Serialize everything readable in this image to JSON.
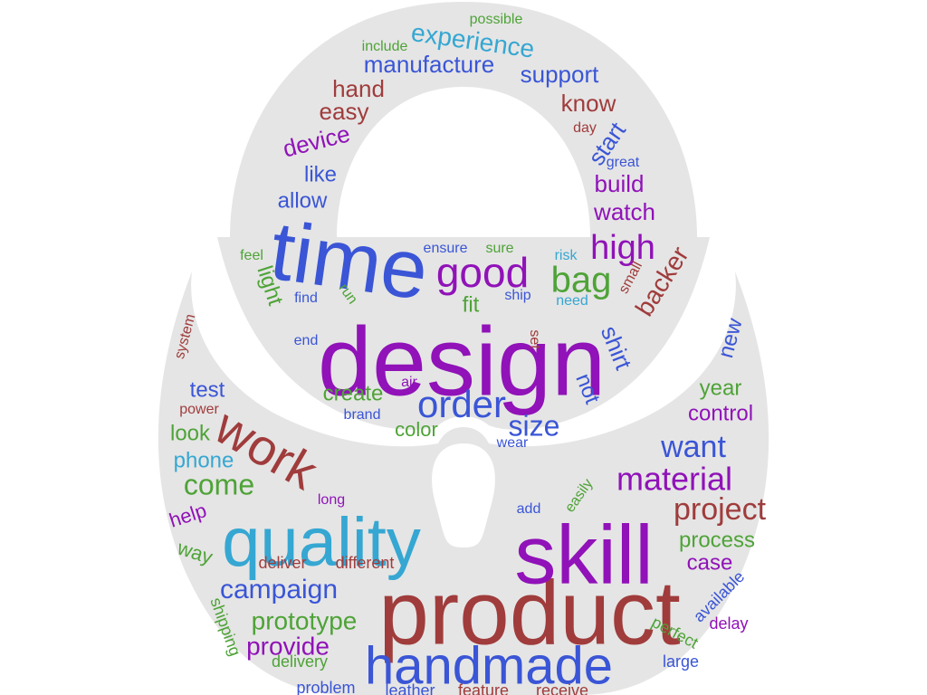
{
  "cloud": {
    "shape_color": "#e5e5e5",
    "background": "#ffffff",
    "palette": {
      "blue": "#3a55d6",
      "purple": "#9012b8",
      "maroon": "#a03c3c",
      "green": "#4ea337",
      "cyan": "#35a7d2"
    },
    "words": [
      {
        "text": "design",
        "color": "purple"
      },
      {
        "text": "time",
        "color": "blue"
      },
      {
        "text": "product",
        "color": "maroon"
      },
      {
        "text": "skill",
        "color": "purple"
      },
      {
        "text": "quality",
        "color": "cyan"
      },
      {
        "text": "handmade",
        "color": "blue"
      },
      {
        "text": "work",
        "color": "maroon"
      },
      {
        "text": "good",
        "color": "purple"
      },
      {
        "text": "bag",
        "color": "green"
      },
      {
        "text": "order",
        "color": "blue"
      },
      {
        "text": "high",
        "color": "purple"
      },
      {
        "text": "material",
        "color": "purple"
      },
      {
        "text": "campaign",
        "color": "blue"
      },
      {
        "text": "project",
        "color": "maroon"
      },
      {
        "text": "want",
        "color": "blue"
      },
      {
        "text": "size",
        "color": "blue"
      },
      {
        "text": "come",
        "color": "green"
      },
      {
        "text": "prototype",
        "color": "green"
      },
      {
        "text": "provide",
        "color": "purple"
      },
      {
        "text": "experience",
        "color": "cyan"
      },
      {
        "text": "manufacture",
        "color": "blue"
      },
      {
        "text": "support",
        "color": "blue"
      },
      {
        "text": "know",
        "color": "maroon"
      },
      {
        "text": "hand",
        "color": "maroon"
      },
      {
        "text": "easy",
        "color": "maroon"
      },
      {
        "text": "device",
        "color": "purple"
      },
      {
        "text": "start",
        "color": "blue"
      },
      {
        "text": "like",
        "color": "blue"
      },
      {
        "text": "allow",
        "color": "blue"
      },
      {
        "text": "build",
        "color": "purple"
      },
      {
        "text": "watch",
        "color": "purple"
      },
      {
        "text": "backer",
        "color": "maroon"
      },
      {
        "text": "shirt",
        "color": "blue"
      },
      {
        "text": "not",
        "color": "blue"
      },
      {
        "text": "light",
        "color": "green"
      },
      {
        "text": "fit",
        "color": "green"
      },
      {
        "text": "create",
        "color": "green"
      },
      {
        "text": "color",
        "color": "green"
      },
      {
        "text": "test",
        "color": "blue"
      },
      {
        "text": "look",
        "color": "green"
      },
      {
        "text": "phone",
        "color": "cyan"
      },
      {
        "text": "help",
        "color": "purple"
      },
      {
        "text": "way",
        "color": "green"
      },
      {
        "text": "year",
        "color": "green"
      },
      {
        "text": "control",
        "color": "purple"
      },
      {
        "text": "new",
        "color": "blue"
      },
      {
        "text": "process",
        "color": "green"
      },
      {
        "text": "case",
        "color": "purple"
      },
      {
        "text": "include",
        "color": "green"
      },
      {
        "text": "possible",
        "color": "green"
      },
      {
        "text": "day",
        "color": "maroon"
      },
      {
        "text": "great",
        "color": "blue"
      },
      {
        "text": "feel",
        "color": "green"
      },
      {
        "text": "ensure",
        "color": "blue"
      },
      {
        "text": "sure",
        "color": "green"
      },
      {
        "text": "risk",
        "color": "cyan"
      },
      {
        "text": "small",
        "color": "maroon"
      },
      {
        "text": "find",
        "color": "blue"
      },
      {
        "text": "run",
        "color": "green"
      },
      {
        "text": "ship",
        "color": "blue"
      },
      {
        "text": "need",
        "color": "cyan"
      },
      {
        "text": "end",
        "color": "blue"
      },
      {
        "text": "set",
        "color": "maroon"
      },
      {
        "text": "air",
        "color": "purple"
      },
      {
        "text": "brand",
        "color": "blue"
      },
      {
        "text": "wear",
        "color": "blue"
      },
      {
        "text": "system",
        "color": "maroon"
      },
      {
        "text": "power",
        "color": "maroon"
      },
      {
        "text": "long",
        "color": "purple"
      },
      {
        "text": "add",
        "color": "blue"
      },
      {
        "text": "easily",
        "color": "green"
      },
      {
        "text": "deliver",
        "color": "maroon"
      },
      {
        "text": "different",
        "color": "maroon"
      },
      {
        "text": "shipping",
        "color": "green"
      },
      {
        "text": "delivery",
        "color": "green"
      },
      {
        "text": "problem",
        "color": "blue"
      },
      {
        "text": "leather",
        "color": "blue"
      },
      {
        "text": "feature",
        "color": "maroon"
      },
      {
        "text": "receive",
        "color": "maroon"
      },
      {
        "text": "available",
        "color": "blue"
      },
      {
        "text": "delay",
        "color": "purple"
      },
      {
        "text": "perfect",
        "color": "green"
      },
      {
        "text": "large",
        "color": "blue"
      }
    ]
  }
}
